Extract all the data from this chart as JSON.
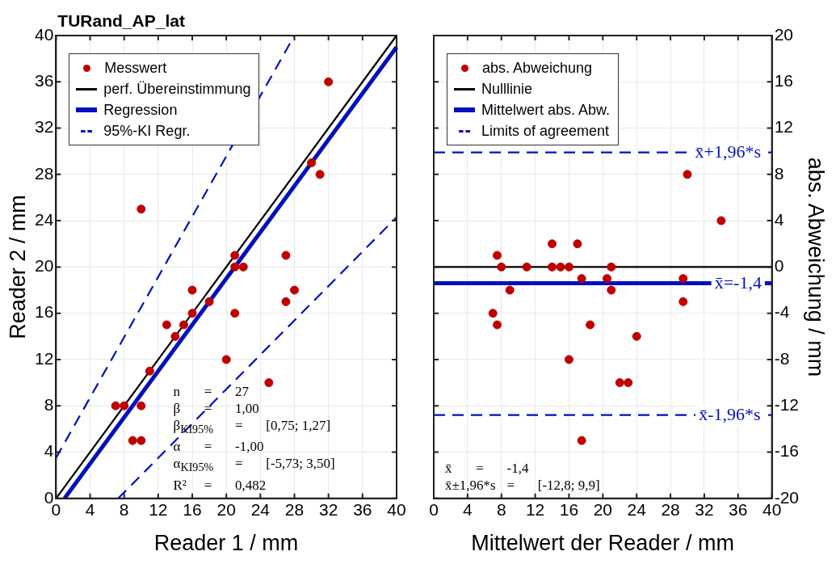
{
  "chart_data": [
    {
      "type": "scatter",
      "title": "TURand_AP_lat",
      "xlabel": "Reader 1 / mm",
      "ylabel": "Reader 2 / mm",
      "xlim": [
        0,
        40
      ],
      "ylim": [
        0,
        40
      ],
      "xticks": [
        0,
        4,
        8,
        12,
        16,
        20,
        24,
        28,
        32,
        36,
        40
      ],
      "yticks": [
        0,
        4,
        8,
        12,
        16,
        20,
        24,
        28,
        32,
        36,
        40
      ],
      "grid": true,
      "legend": "top left",
      "series": [
        {
          "name": "Messwert",
          "type": "scatter",
          "color": "#c00000",
          "marker": "circle",
          "x": [
            32,
            30,
            31,
            10,
            21,
            21,
            22,
            27,
            28,
            27,
            16,
            18,
            16,
            13,
            15,
            14,
            11,
            7,
            8,
            10,
            9,
            10,
            21,
            20,
            25
          ],
          "values": [
            36,
            29,
            28,
            25,
            21,
            20,
            20,
            21,
            18,
            17,
            18,
            17,
            16,
            15,
            15,
            14,
            11,
            8,
            8,
            8,
            5,
            5,
            16,
            12,
            10
          ]
        },
        {
          "name": "perf. Übereinstimmung",
          "type": "line",
          "color": "#000000",
          "marker": "none",
          "line_style": "solid",
          "x": [
            0,
            40
          ],
          "values": [
            0,
            40
          ]
        },
        {
          "name": "Regression",
          "type": "line",
          "color": "#0010c0",
          "marker": "none",
          "line_style": "solid",
          "x": [
            1,
            40
          ],
          "values": [
            0,
            39
          ]
        },
        {
          "name": "95%-KI Regr.",
          "type": "line",
          "color": "#0010c0",
          "marker": "none",
          "line_style": "dashed",
          "x": [
            0,
            28
          ],
          "values": [
            3.5,
            40
          ]
        },
        {
          "type": "line",
          "color": "#0010c0",
          "marker": "none",
          "line_style": "dashed",
          "x": [
            7.3,
            40
          ],
          "values": [
            0,
            24.3
          ]
        }
      ],
      "annotations": [
        "n\t=\t27",
        "β\t=\t1,00",
        "β$_{KI95%}$\t=\t[0,75; 1,27]",
        "α\t=\t-1,00",
        "α$_{KI95%}$\t=\t[-5,73; 3,50]",
        "R²\t=\t0,482"
      ]
    },
    {
      "type": "scatter",
      "xlabel": "Mittelwert der Reader / mm",
      "ylabel": "abs. Abweichung / mm",
      "xlim": [
        0,
        40
      ],
      "ylim": [
        -20,
        20
      ],
      "xticks": [
        0,
        4,
        8,
        12,
        16,
        20,
        24,
        28,
        32,
        36,
        40
      ],
      "yticks": [
        -20,
        -16,
        -12,
        -8,
        -4,
        0,
        4,
        8,
        12,
        16,
        20
      ],
      "grid": true,
      "legend": "top left",
      "series": [
        {
          "name": "abs. Abweichung",
          "type": "scatter",
          "color": "#c00000",
          "marker": "circle",
          "x": [
            30,
            34,
            7.5,
            14,
            17,
            8,
            11,
            14,
            15,
            16,
            21,
            17.5,
            20.5,
            29.5,
            9,
            21,
            29.5,
            7,
            7.5,
            18.5,
            24,
            16,
            22,
            23,
            17.5
          ],
          "values": [
            8,
            4,
            1,
            2,
            2,
            0,
            0,
            0,
            0,
            0,
            0,
            -1,
            -1,
            -1,
            -2,
            -2,
            -3,
            -4,
            -5,
            -5,
            -6,
            -8,
            -10,
            -10,
            -15
          ]
        },
        {
          "name": "Nulllinie",
          "type": "line",
          "color": "#000000",
          "marker": "none",
          "line_style": "solid",
          "x": [
            0,
            40
          ],
          "values": [
            0,
            0
          ]
        },
        {
          "name": "Mittelwert abs. Abw.",
          "type": "line",
          "color": "#0010c0",
          "marker": "none",
          "line_style": "solid",
          "x": [
            0,
            40
          ],
          "values": [
            -1.4,
            -1.4
          ]
        },
        {
          "name": "Limits of agreement",
          "type": "line",
          "color": "#0010c0",
          "marker": "none",
          "line_style": "dashed",
          "x": [
            0,
            40
          ],
          "values": [
            9.9,
            9.9
          ]
        },
        {
          "type": "line",
          "color": "#0010c0",
          "marker": "none",
          "line_style": "dashed",
          "x": [
            0,
            40
          ],
          "values": [
            -12.8,
            -12.8
          ]
        }
      ],
      "annotations": [
        {
          "text": "x̄+1,96*s",
          "x": 34.8,
          "y": 9.9
        },
        {
          "text": "x̄=-1,4",
          "x": 36,
          "y": -1.4
        },
        {
          "text": "x̄-1,96*s",
          "x": 35,
          "y": -12.8
        },
        "x̄\t=\t-1,4",
        "x̄±1,96*s\t=\t[-12,8; 9,9]"
      ]
    }
  ]
}
